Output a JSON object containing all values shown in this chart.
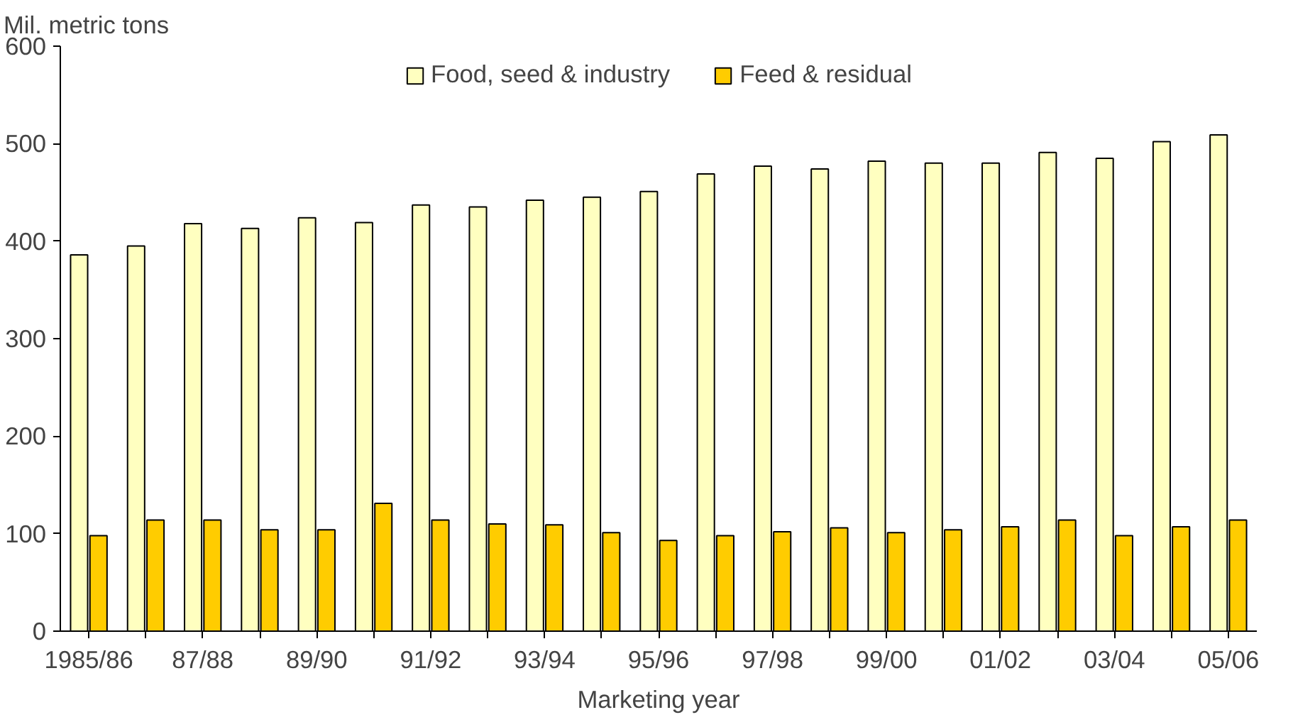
{
  "chart_data": {
    "type": "bar",
    "ylabel": "Mil. metric tons",
    "xlabel": "Marketing year",
    "categories": [
      "1985/86",
      null,
      "87/88",
      null,
      "89/90",
      null,
      "91/92",
      null,
      "93/94",
      null,
      "95/96",
      null,
      "97/98",
      null,
      "99/00",
      null,
      "01/02",
      null,
      "03/04",
      null,
      "05/06"
    ],
    "series": [
      {
        "name": "Food, seed & industry",
        "color": "#ffffc0",
        "values": [
          386,
          395,
          418,
          413,
          424,
          419,
          437,
          435,
          442,
          445,
          451,
          469,
          477,
          474,
          482,
          480,
          480,
          491,
          485,
          502,
          509
        ]
      },
      {
        "name": "Feed & residual",
        "color": "#ffcc00",
        "values": [
          98,
          114,
          114,
          104,
          104,
          131,
          114,
          110,
          109,
          101,
          93,
          98,
          102,
          106,
          101,
          104,
          107,
          114,
          98,
          107,
          114
        ]
      }
    ],
    "ylim": [
      0,
      600
    ],
    "yticks": [
      0,
      100,
      200,
      300,
      400,
      500,
      600
    ],
    "grid": false,
    "legend": "top"
  }
}
